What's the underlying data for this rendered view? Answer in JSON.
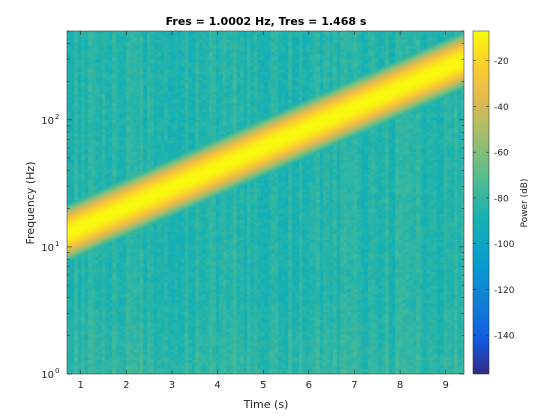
{
  "chart_data": {
    "type": "heatmap",
    "title": "Fres = 1.0002 Hz, Tres = 1.468 s",
    "xlabel": "Time (s)",
    "ylabel": "Frequency (Hz)",
    "xlim": [
      0.7,
      9.4
    ],
    "ylim": [
      1,
      500
    ],
    "yscale": "log",
    "x_ticks": [
      1,
      2,
      3,
      4,
      5,
      6,
      7,
      8,
      9
    ],
    "y_ticks": [
      {
        "value": 1,
        "base": "10",
        "exp": "0"
      },
      {
        "value": 10,
        "base": "10",
        "exp": "1"
      },
      {
        "value": 100,
        "base": "10",
        "exp": "2"
      }
    ],
    "colorbar": {
      "label": "Power (dB)",
      "range": [
        -157,
        -7
      ],
      "ticks": [
        -20,
        -40,
        -60,
        -80,
        -100,
        -120,
        -140
      ],
      "colormap": "parula"
    },
    "ridge": {
      "description": "exponential chirp",
      "points": [
        [
          0.7,
          13
        ],
        [
          9.4,
          300
        ]
      ],
      "peak_power_db": -10,
      "background_power_db": -85
    },
    "grid": false
  }
}
